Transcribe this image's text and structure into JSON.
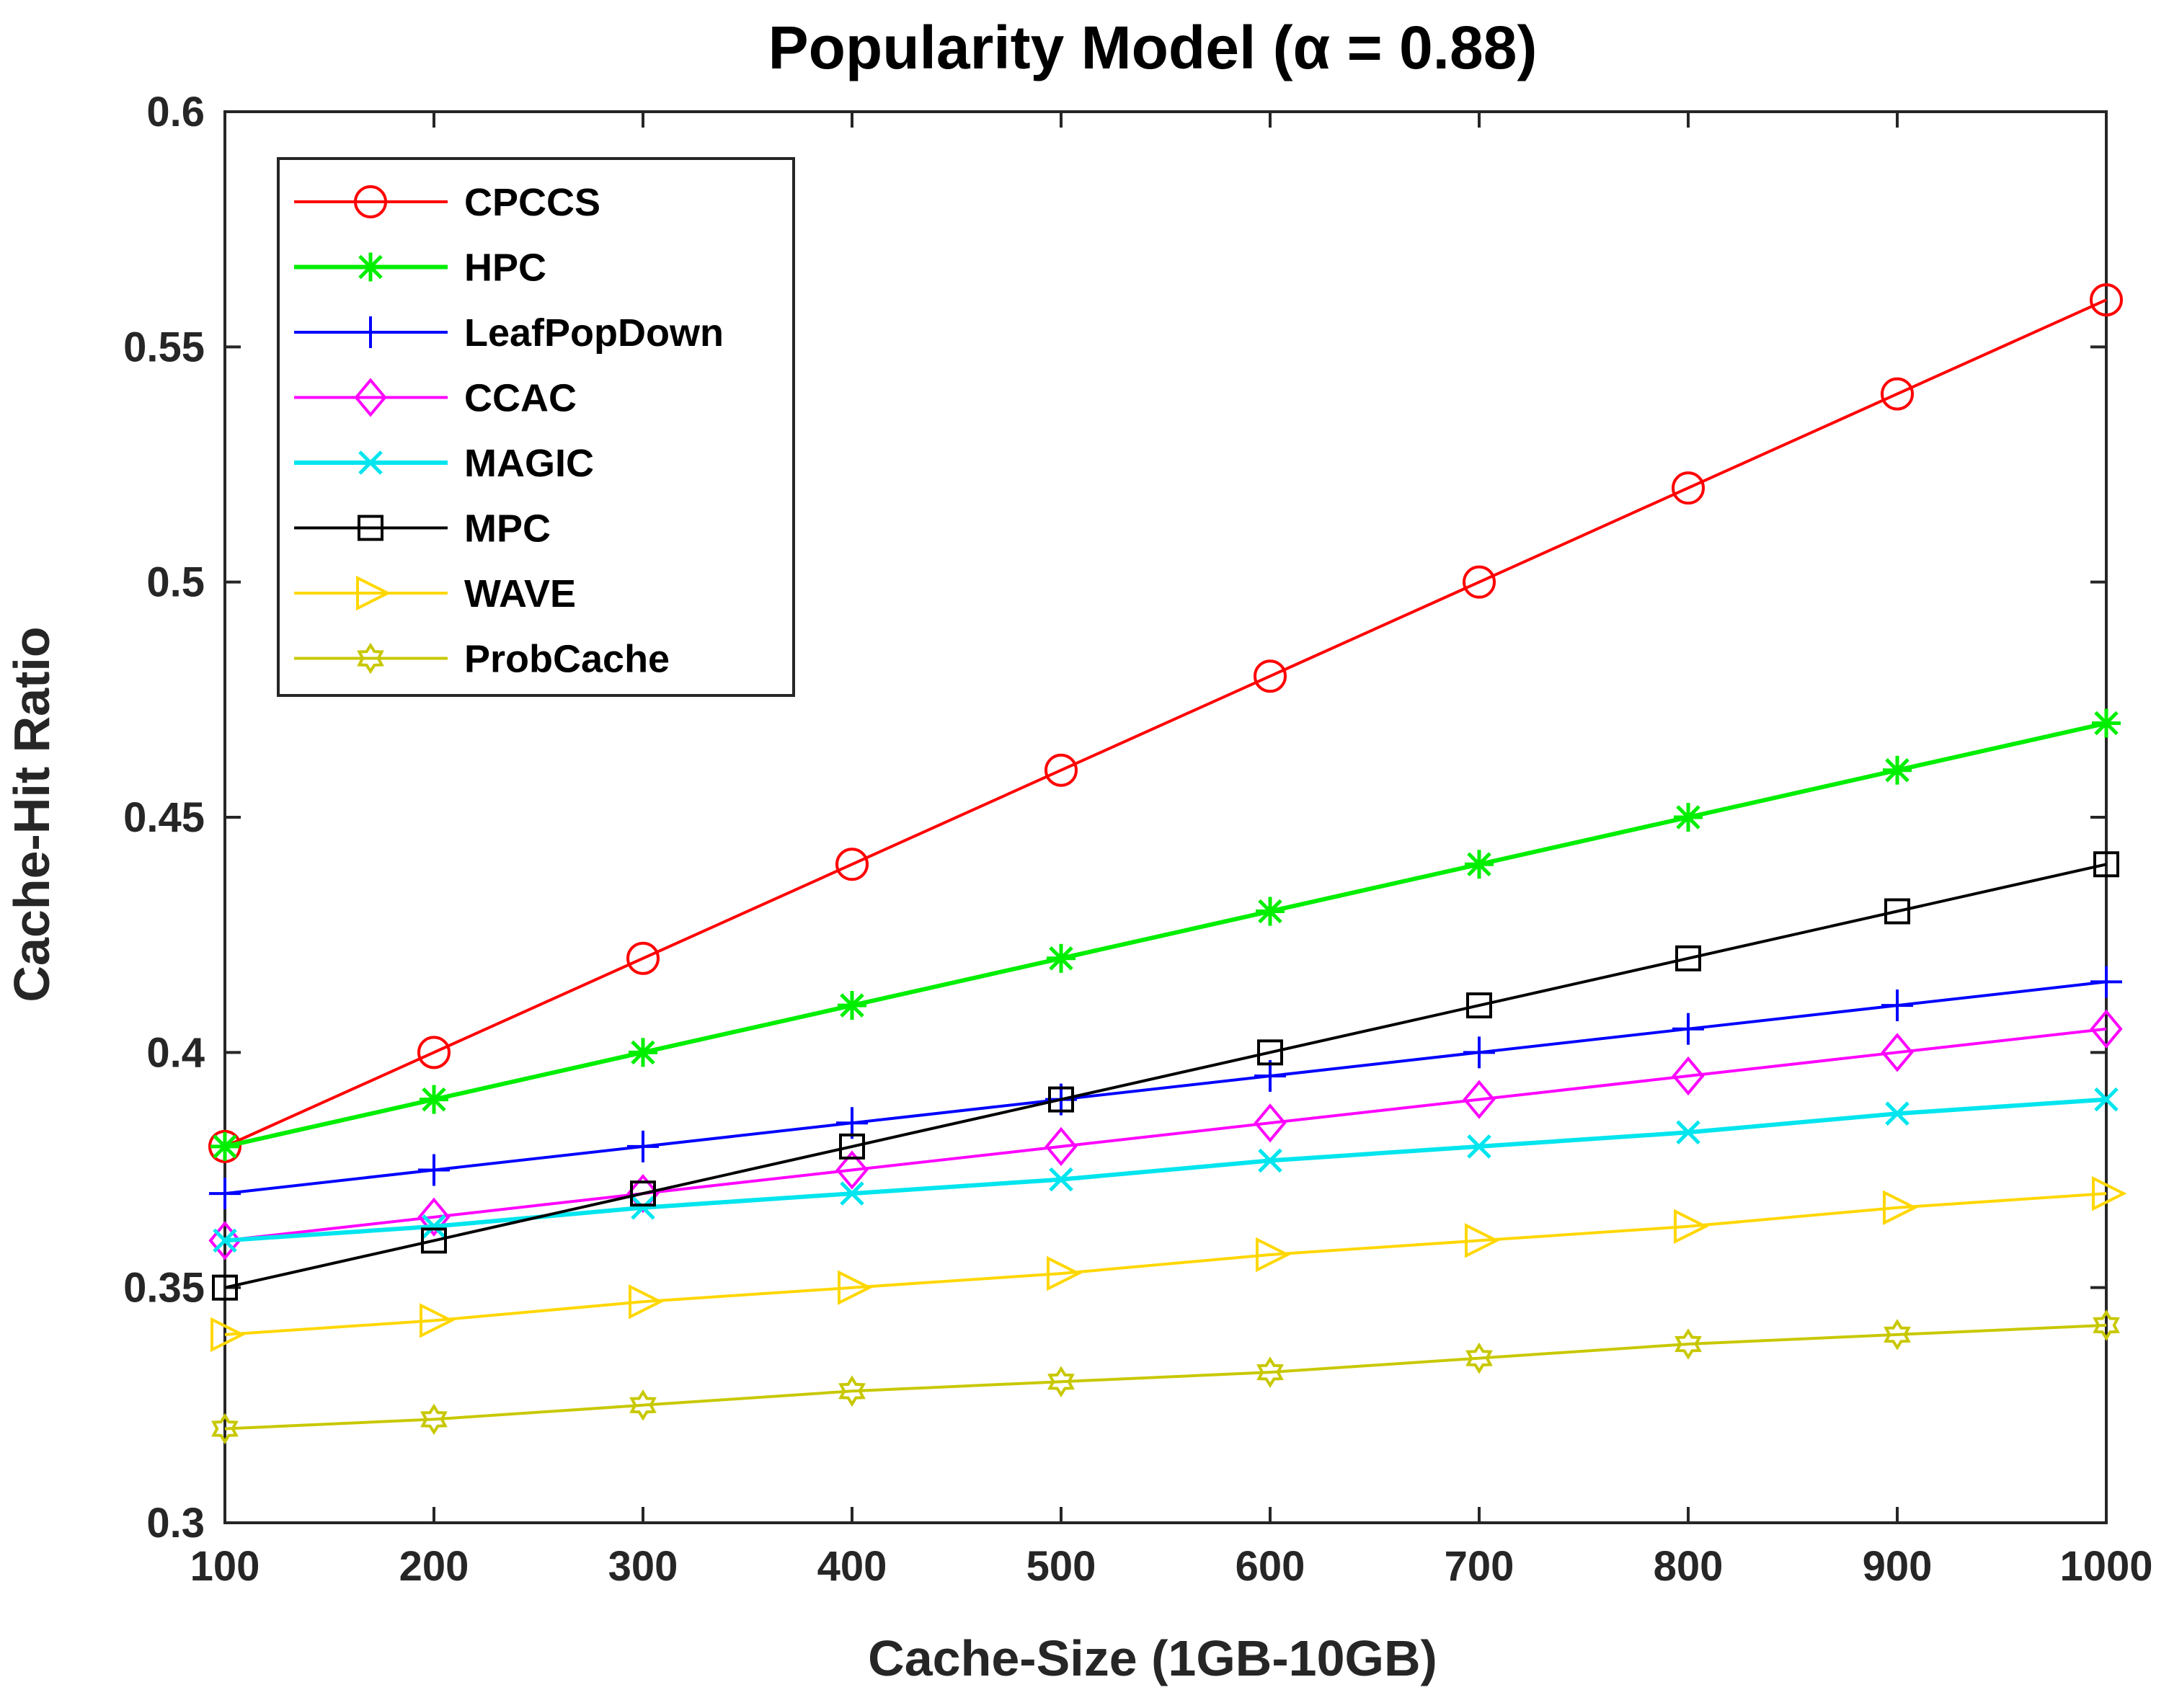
{
  "chart_data": {
    "type": "line",
    "title": "Popularity Model (α = 0.88)",
    "xlabel": "Cache-Size (1GB-10GB)",
    "ylabel": "Cache-Hit Ratio",
    "x": [
      100,
      200,
      300,
      400,
      500,
      600,
      700,
      800,
      900,
      1000
    ],
    "xlim": [
      100,
      1000
    ],
    "ylim": [
      0.3,
      0.6
    ],
    "xticks": [
      "100",
      "200",
      "300",
      "400",
      "500",
      "600",
      "700",
      "800",
      "900",
      "1000"
    ],
    "yticks": [
      "0.3",
      "0.35",
      "0.4",
      "0.45",
      "0.5",
      "0.55",
      "0.6"
    ],
    "grid": false,
    "legend_position": "top-left",
    "series": [
      {
        "name": "CPCCS",
        "color": "#ff0000",
        "marker": "circle",
        "values": [
          0.38,
          0.4,
          0.42,
          0.44,
          0.46,
          0.48,
          0.5,
          0.52,
          0.54,
          0.56
        ]
      },
      {
        "name": "HPC",
        "color": "#00ee00",
        "marker": "asterisk",
        "values": [
          0.38,
          0.39,
          0.4,
          0.41,
          0.42,
          0.43,
          0.44,
          0.45,
          0.46,
          0.47
        ]
      },
      {
        "name": "LeafPopDown",
        "color": "#0000ff",
        "marker": "plus",
        "values": [
          0.37,
          0.375,
          0.38,
          0.385,
          0.39,
          0.395,
          0.4,
          0.405,
          0.41,
          0.415
        ]
      },
      {
        "name": "CCAC",
        "color": "#ff00ff",
        "marker": "diamond",
        "values": [
          0.36,
          0.365,
          0.37,
          0.375,
          0.38,
          0.385,
          0.39,
          0.395,
          0.4,
          0.405
        ]
      },
      {
        "name": "MAGIC",
        "color": "#00e5ee",
        "marker": "x",
        "values": [
          0.36,
          0.363,
          0.367,
          0.37,
          0.373,
          0.377,
          0.38,
          0.383,
          0.387,
          0.39
        ]
      },
      {
        "name": "MPC",
        "color": "#000000",
        "marker": "square",
        "values": [
          0.35,
          0.36,
          0.37,
          0.38,
          0.39,
          0.4,
          0.41,
          0.42,
          0.43,
          0.44
        ]
      },
      {
        "name": "WAVE",
        "color": "#ffd700",
        "marker": "triangle-right",
        "values": [
          0.34,
          0.343,
          0.347,
          0.35,
          0.353,
          0.357,
          0.36,
          0.363,
          0.367,
          0.37
        ]
      },
      {
        "name": "ProbCache",
        "color": "#c8c800",
        "marker": "hexagram",
        "values": [
          0.32,
          0.322,
          0.325,
          0.328,
          0.33,
          0.332,
          0.335,
          0.338,
          0.34,
          0.342
        ]
      }
    ]
  }
}
